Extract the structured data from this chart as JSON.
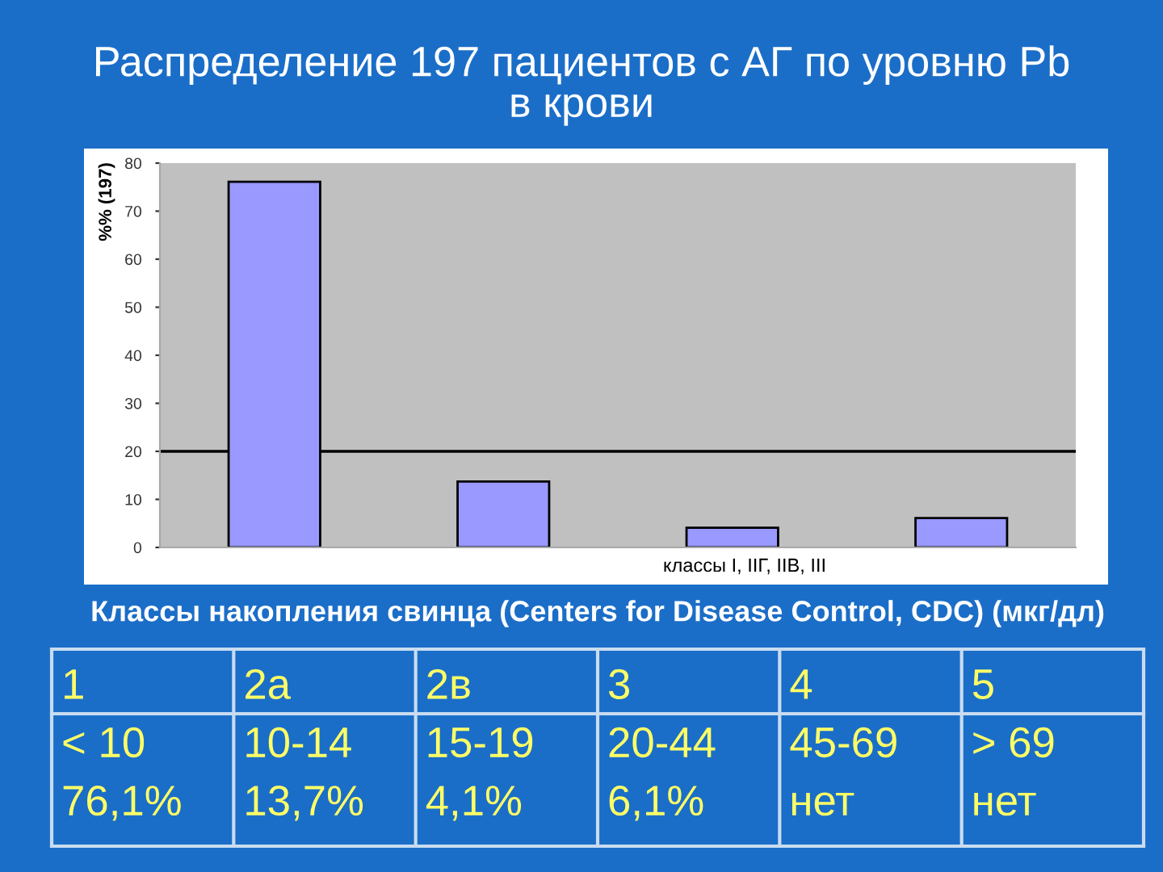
{
  "chart_data": {
    "type": "bar",
    "title": "Распределение 197 пациентов с АГ по уровню Pb\nв крови",
    "categories": [
      null,
      null,
      null,
      null
    ],
    "values": [
      76.1,
      13.7,
      4.1,
      6.1
    ],
    "color": "#9999ff",
    "xlabel": "классы I, IIГ, IIВ, III",
    "ylabel": "%% (197)",
    "ylim": [
      0,
      80
    ],
    "yticks": [
      0,
      10,
      20,
      30,
      40,
      50,
      60,
      70,
      80
    ],
    "ref_lines": [
      {
        "axis": "y",
        "value": 20,
        "color": "#000000"
      }
    ],
    "annotations": [
      "Классы накопления свинца (Centers for Disease Control, CDC) (мкг/дл)",
      "1\n< 10\n76,1%",
      "2а\n10-14\n13,7%",
      "2в\n15-19\n4,1%",
      "3\n20-44\n6,1%",
      "4\n45-69\nнет",
      "5\n> 69\nнет"
    ]
  }
}
